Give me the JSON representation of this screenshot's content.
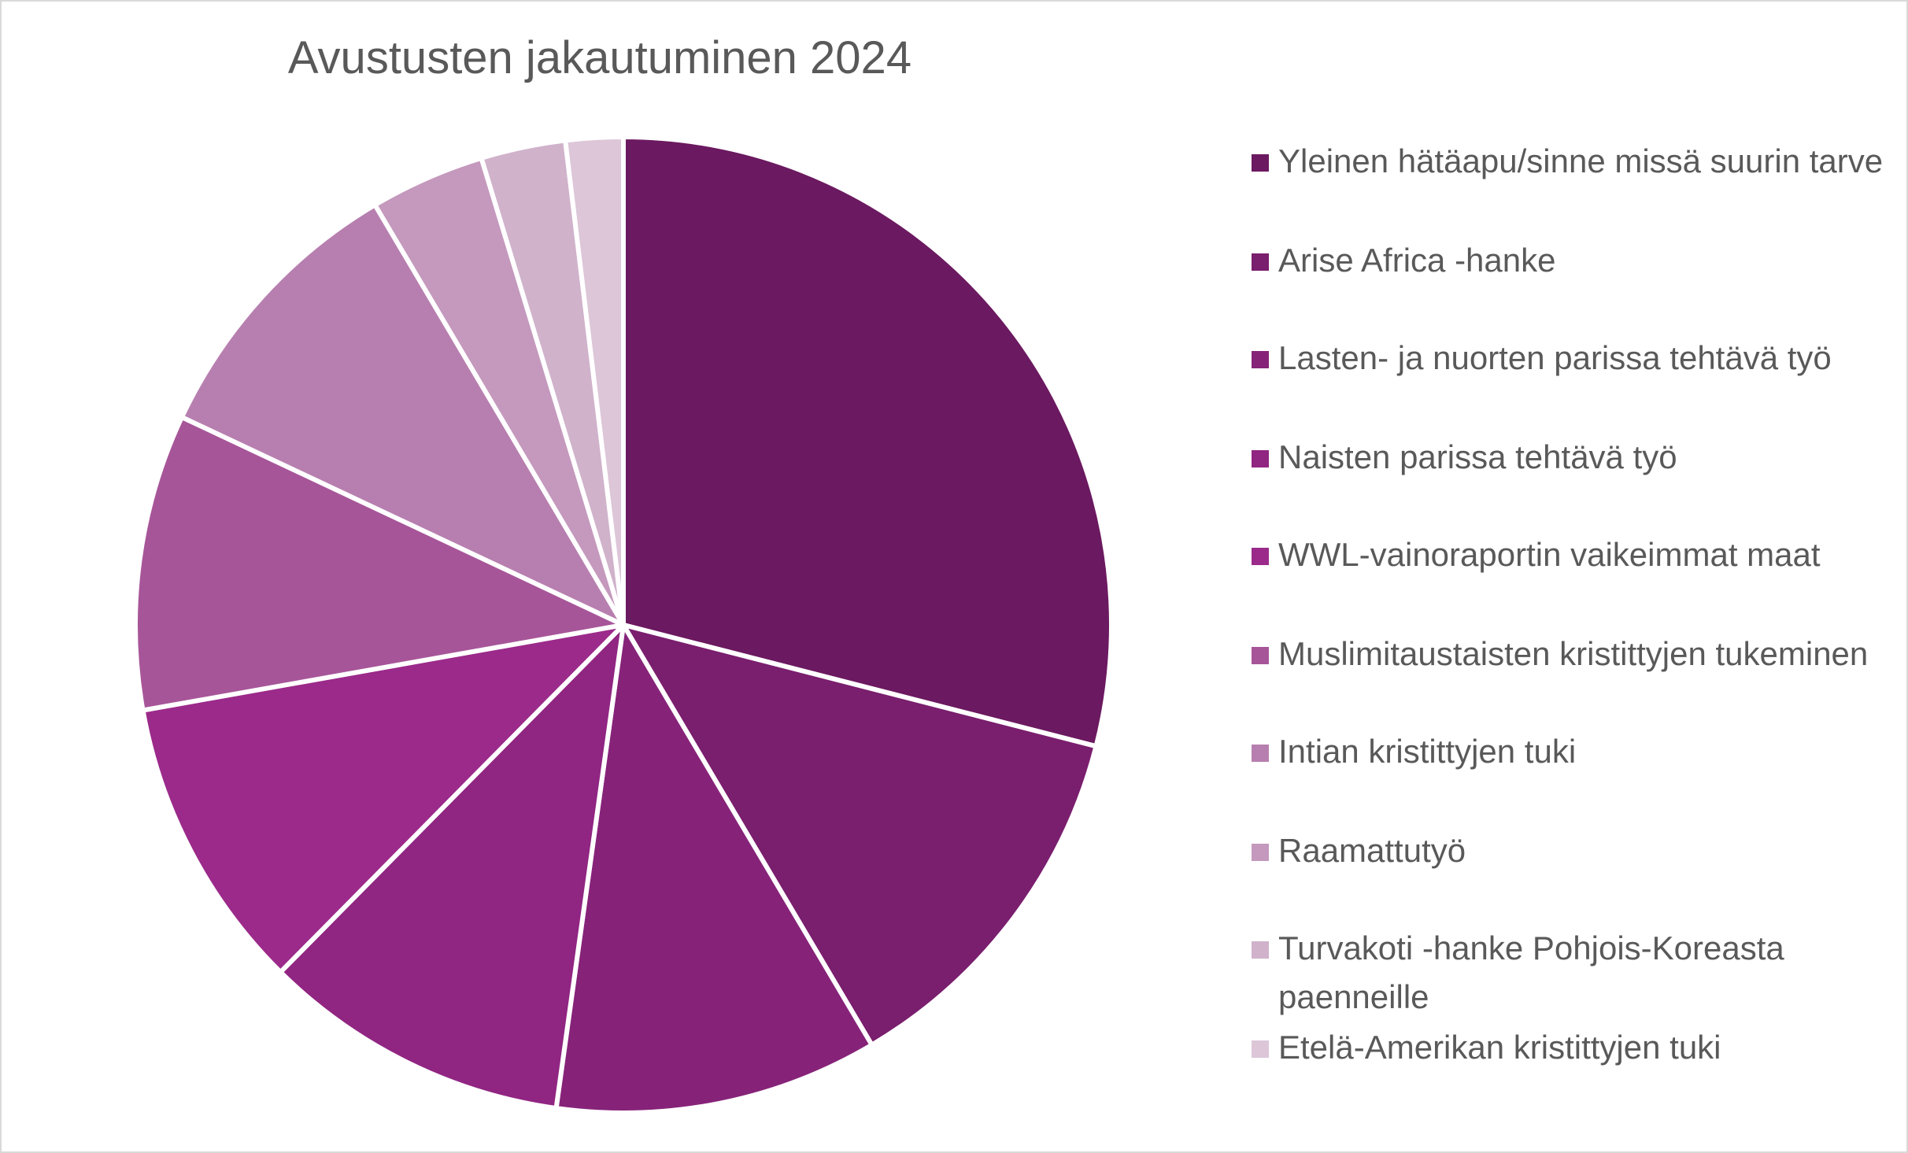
{
  "chart_data": {
    "type": "pie",
    "title": "Avustusten jakautuminen 2024",
    "categories": [
      "Yleinen hätäapu/sinne missä suurin tarve",
      "Arise Africa -hanke",
      "Lasten- ja nuorten parissa tehtävä työ",
      "Naisten parissa tehtävä työ",
      "WWL-vainoraportin vaikeimmat maat",
      "Muslimitaustaisten kristittyjen tukeminen",
      "Intian kristittyjen tuki",
      "Raamattutyö",
      "Turvakoti -hanke Pohjois-Koreasta paenneille",
      "Etelä-Amerikan kristittyjen tuki"
    ],
    "values": [
      29.0,
      12.5,
      10.7,
      10.2,
      9.8,
      9.8,
      9.5,
      3.8,
      2.8,
      1.9
    ],
    "colors": [
      "#6b1960",
      "#7a1e6e",
      "#862379",
      "#902582",
      "#9b2a8a",
      "#a75599",
      "#b77faf",
      "#c499bd",
      "#d0b2cb",
      "#dcc6d8"
    ],
    "legend_position": "right"
  }
}
